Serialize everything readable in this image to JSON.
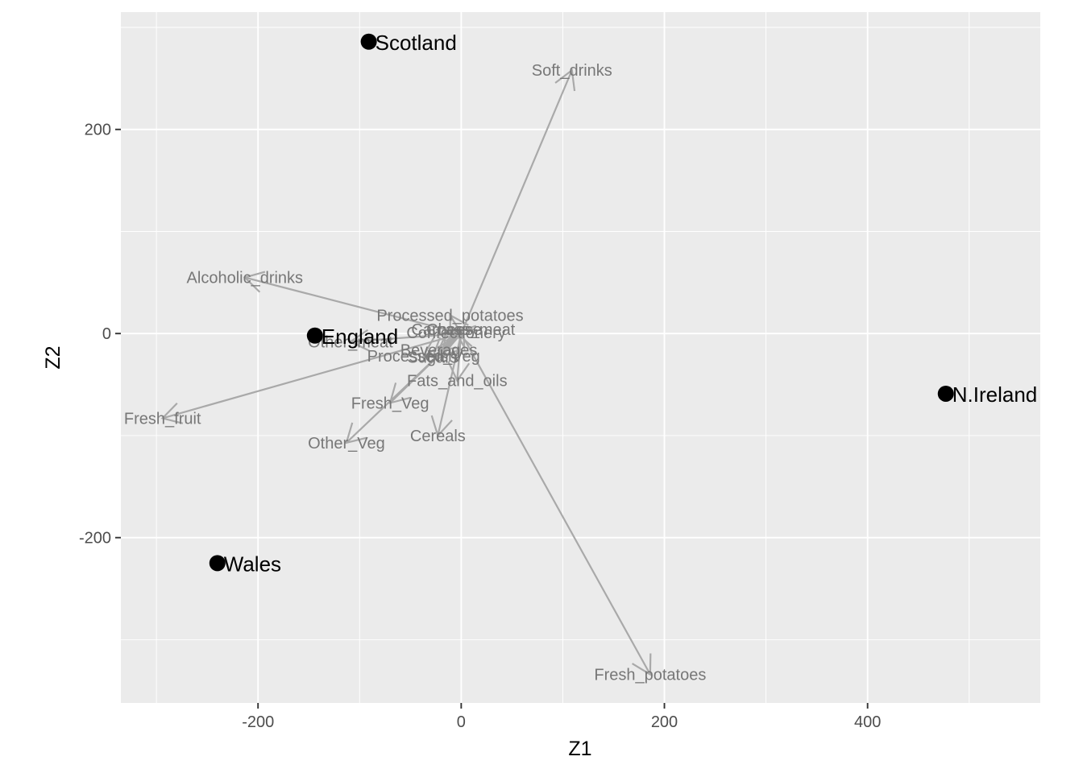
{
  "chart_data": {
    "type": "scatter",
    "subtype": "pca-biplot",
    "title": "",
    "xlabel": "Z1",
    "ylabel": "Z2",
    "xlim": [
      -335,
      570
    ],
    "ylim": [
      -362,
      315
    ],
    "xticks": [
      -200,
      0,
      200,
      400
    ],
    "yticks": [
      -200,
      0,
      200
    ],
    "xtick_labels": [
      "-200",
      "0",
      "200",
      "400"
    ],
    "ytick_labels": [
      "-200",
      "0",
      "200"
    ],
    "grid": true,
    "panel_color": "#ebebeb",
    "points": [
      {
        "label": "England",
        "x": -144,
        "y": -2
      },
      {
        "label": "Wales",
        "x": -240,
        "y": -225
      },
      {
        "label": "Scotland",
        "x": -91,
        "y": 286
      },
      {
        "label": "N.Ireland",
        "x": 477,
        "y": -59
      }
    ],
    "loadings": [
      {
        "label": "Soft_drinks",
        "x": 109,
        "y": 258
      },
      {
        "label": "Alcoholic_drinks",
        "x": -213,
        "y": 55
      },
      {
        "label": "Processed_potatoes",
        "x": -11,
        "y": 18
      },
      {
        "label": "Carcass_meat",
        "x": 2,
        "y": 4
      },
      {
        "label": "Cheese",
        "x": -7,
        "y": 4
      },
      {
        "label": "Confectionery",
        "x": -5,
        "y": 1
      },
      {
        "label": "Other_meat",
        "x": -109,
        "y": -8
      },
      {
        "label": "Beverages",
        "x": -22,
        "y": -16
      },
      {
        "label": "Processed_Veg",
        "x": -37,
        "y": -22
      },
      {
        "label": "Fish",
        "x": -19,
        "y": -22
      },
      {
        "label": "Sugars",
        "x": -28,
        "y": -23
      },
      {
        "label": "Fats_and_oils",
        "x": -4,
        "y": -46
      },
      {
        "label": "Fresh_Veg",
        "x": -70,
        "y": -68
      },
      {
        "label": "Other_Veg",
        "x": -113,
        "y": -107
      },
      {
        "label": "Cereals",
        "x": -23,
        "y": -100
      },
      {
        "label": "Fresh_fruit",
        "x": -294,
        "y": -83
      },
      {
        "label": "Fresh_potatoes",
        "x": 186,
        "y": -334
      }
    ],
    "point_color": "#000000",
    "arrow_color": "#a9a9a9",
    "arrow_label_color": "#777777"
  }
}
